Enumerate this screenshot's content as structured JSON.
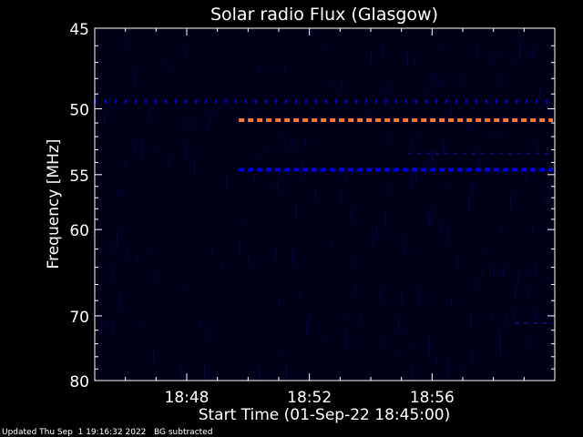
{
  "colors": {
    "background": "#000000",
    "plot_background": "#000018",
    "axis": "#ffffff",
    "text": "#ffffff",
    "band_blue": "#0000e6",
    "band_orange": "#ff7a3a",
    "noise": "#06065a"
  },
  "footer": {
    "updated": "Updated Thu Sep  1 19:16:32 2022",
    "note": "BG subtracted"
  },
  "chart_data": {
    "type": "heatmap",
    "title": "Solar radio Flux (Glasgow)",
    "xlabel": "Start Time (01-Sep-22 18:45:00)",
    "ylabel": "Frequency [MHz]",
    "x_range": [
      "18:45:00",
      "19:00:00"
    ],
    "y_range_mhz": [
      45,
      80
    ],
    "y_ticks": [
      45,
      50,
      55,
      60,
      70,
      80
    ],
    "y_tick_labels": [
      "45",
      "50",
      "55",
      "60",
      "70",
      "80"
    ],
    "x_ticks": [
      "18:48",
      "18:52",
      "18:56"
    ],
    "x_ticks_minutes": [
      3,
      7,
      11
    ],
    "series": [
      {
        "freq_mhz": 49.5,
        "start_min": 0.0,
        "end_min": 15.0,
        "style": "dotted",
        "color": "#0000e6"
      },
      {
        "freq_mhz": 50.8,
        "start_min": 4.7,
        "end_min": 15.0,
        "style": "dashed",
        "color": "#ff7a3a"
      },
      {
        "freq_mhz": 54.6,
        "start_min": 4.7,
        "end_min": 15.0,
        "style": "dashed",
        "color": "#0000e6"
      },
      {
        "freq_mhz": 53.3,
        "start_min": 10.2,
        "end_min": 15.0,
        "style": "faint",
        "color": "#1010a0"
      },
      {
        "freq_mhz": 71.0,
        "start_min": 13.7,
        "end_min": 15.0,
        "style": "faint",
        "color": "#1a1ab0"
      }
    ]
  }
}
